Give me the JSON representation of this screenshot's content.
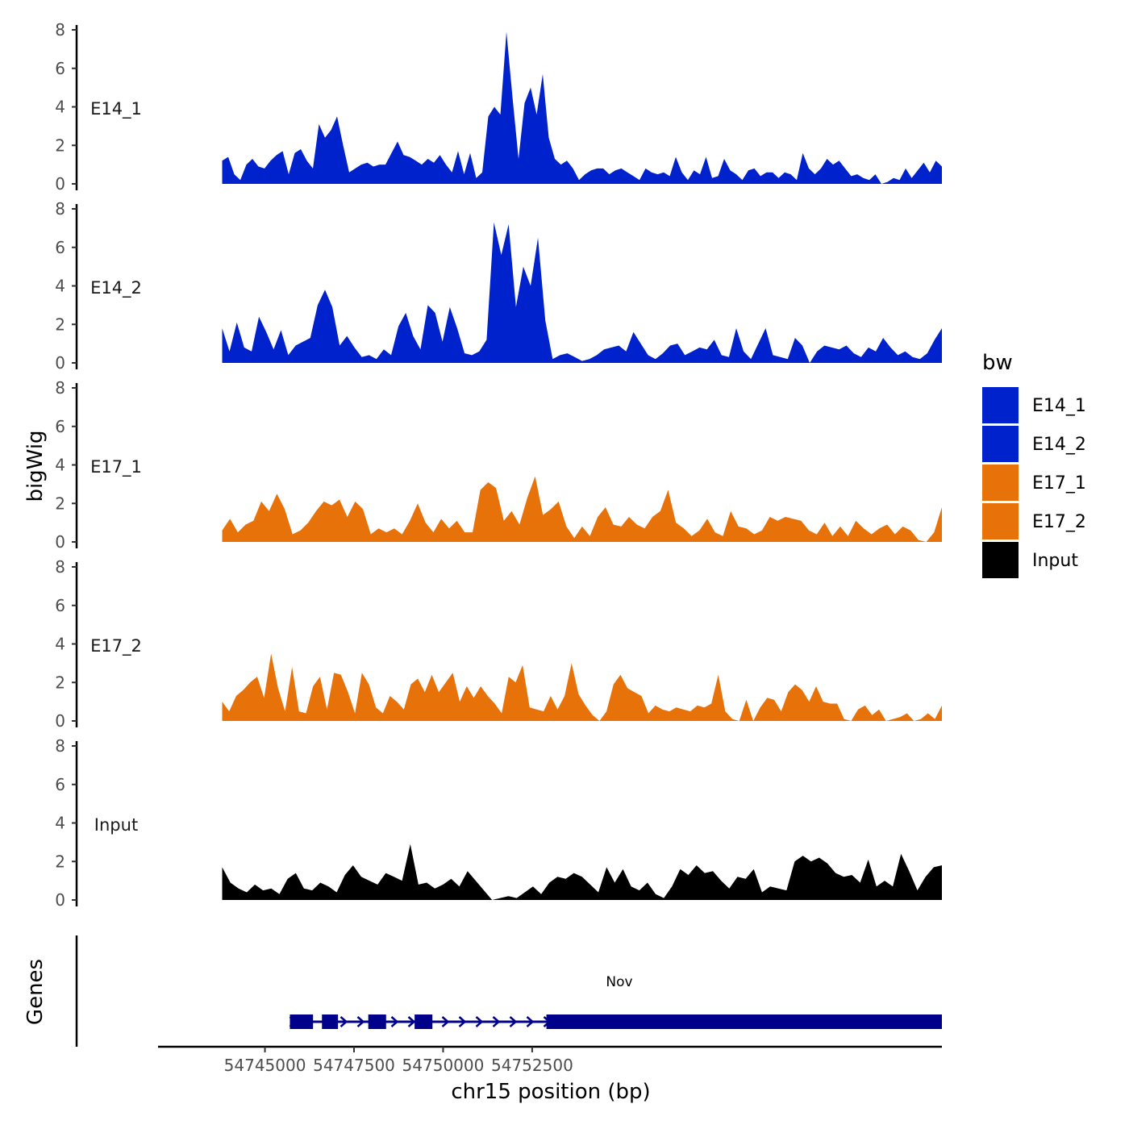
{
  "chart_data": {
    "type": "area",
    "ylabel": "bigWig",
    "genes_label": "Genes",
    "xlabel": "chr15 position (bp)",
    "x_range": [
      54742000,
      54764000
    ],
    "ylim": [
      0,
      8
    ],
    "y_ticks": [
      0,
      2,
      4,
      6,
      8
    ],
    "x_ticks": [
      54745000,
      54747500,
      54750000,
      54752500
    ],
    "x_tick_labels": [
      "54745000",
      "54747500",
      "54750000",
      "54752500"
    ],
    "legend": {
      "title": "bw",
      "entries": [
        {
          "name": "E14_1",
          "color": "#0022cc"
        },
        {
          "name": "E14_2",
          "color": "#0022cc"
        },
        {
          "name": "E17_1",
          "color": "#e8720a"
        },
        {
          "name": "E17_2",
          "color": "#e8720a"
        },
        {
          "name": "Input",
          "color": "#000000"
        }
      ]
    },
    "x_start": 54743800,
    "x_end": 54764000,
    "series": [
      {
        "name": "E14_1",
        "color": "#0022cc",
        "values": [
          1.2,
          1.4,
          0.5,
          0.2,
          1.0,
          1.3,
          0.9,
          0.8,
          1.2,
          1.5,
          1.7,
          0.5,
          1.6,
          1.8,
          1.2,
          0.8,
          3.1,
          2.4,
          2.8,
          3.5,
          2.0,
          0.6,
          0.8,
          1.0,
          1.1,
          0.9,
          1.0,
          1.0,
          1.6,
          2.2,
          1.5,
          1.4,
          1.2,
          1.0,
          1.3,
          1.1,
          1.5,
          1.0,
          0.6,
          1.7,
          0.5,
          1.6,
          0.3,
          0.6,
          3.5,
          4.0,
          3.6,
          7.9,
          4.5,
          1.3,
          4.2,
          5.0,
          3.6,
          5.7,
          2.4,
          1.3,
          1.0,
          1.2,
          0.8,
          0.2,
          0.5,
          0.7,
          0.8,
          0.8,
          0.5,
          0.7,
          0.8,
          0.6,
          0.4,
          0.2,
          0.8,
          0.6,
          0.5,
          0.6,
          0.4,
          1.4,
          0.6,
          0.2,
          0.7,
          0.5,
          1.4,
          0.3,
          0.4,
          1.3,
          0.7,
          0.5,
          0.2,
          0.7,
          0.8,
          0.4,
          0.6,
          0.6,
          0.3,
          0.6,
          0.5,
          0.2,
          1.6,
          0.8,
          0.5,
          0.8,
          1.3,
          1.0,
          1.2,
          0.8,
          0.4,
          0.5,
          0.3,
          0.2,
          0.5,
          0.0,
          0.1,
          0.3,
          0.2,
          0.8,
          0.3,
          0.7,
          1.1,
          0.6,
          1.2,
          0.9
        ]
      },
      {
        "name": "E14_2",
        "color": "#0022cc",
        "values": [
          1.8,
          0.6,
          2.1,
          0.8,
          0.6,
          2.4,
          1.6,
          0.7,
          1.7,
          0.4,
          0.9,
          1.1,
          1.3,
          3.0,
          3.8,
          2.9,
          0.9,
          1.4,
          0.8,
          0.3,
          0.4,
          0.2,
          0.7,
          0.4,
          1.9,
          2.6,
          1.4,
          0.7,
          3.0,
          2.6,
          1.1,
          2.9,
          1.8,
          0.5,
          0.4,
          0.6,
          1.2,
          7.3,
          5.6,
          7.2,
          2.9,
          5.0,
          4.0,
          6.5,
          2.2,
          0.2,
          0.4,
          0.5,
          0.3,
          0.1,
          0.2,
          0.4,
          0.7,
          0.8,
          0.9,
          0.6,
          1.6,
          1.0,
          0.4,
          0.2,
          0.5,
          0.9,
          1.0,
          0.4,
          0.6,
          0.8,
          0.7,
          1.2,
          0.4,
          0.3,
          1.8,
          0.6,
          0.2,
          1.0,
          1.8,
          0.4,
          0.3,
          0.2,
          1.3,
          0.9,
          0.0,
          0.6,
          0.9,
          0.8,
          0.7,
          0.9,
          0.5,
          0.3,
          0.8,
          0.6,
          1.3,
          0.8,
          0.4,
          0.6,
          0.3,
          0.2,
          0.5,
          1.2,
          1.8
        ]
      },
      {
        "name": "E17_1",
        "color": "#e8720a",
        "values": [
          0.6,
          1.2,
          0.5,
          0.9,
          1.1,
          2.1,
          1.6,
          2.5,
          1.7,
          0.4,
          0.6,
          1.0,
          1.6,
          2.1,
          1.9,
          2.2,
          1.3,
          2.1,
          1.7,
          0.4,
          0.7,
          0.5,
          0.7,
          0.4,
          1.1,
          2.0,
          1.0,
          0.5,
          1.2,
          0.7,
          1.1,
          0.5,
          0.5,
          2.7,
          3.1,
          2.8,
          1.1,
          1.6,
          0.9,
          2.3,
          3.4,
          1.4,
          1.7,
          2.1,
          0.8,
          0.2,
          0.8,
          0.3,
          1.3,
          1.8,
          0.9,
          0.8,
          1.3,
          0.9,
          0.7,
          1.3,
          1.6,
          2.7,
          1.0,
          0.7,
          0.3,
          0.6,
          1.2,
          0.5,
          0.3,
          1.6,
          0.8,
          0.7,
          0.4,
          0.6,
          1.3,
          1.1,
          1.3,
          1.2,
          1.1,
          0.6,
          0.4,
          1.0,
          0.3,
          0.8,
          0.3,
          1.1,
          0.7,
          0.4,
          0.7,
          0.9,
          0.4,
          0.8,
          0.6,
          0.1,
          0.0,
          0.5,
          1.8
        ]
      },
      {
        "name": "E17_2",
        "color": "#e8720a",
        "values": [
          1.0,
          0.5,
          1.3,
          1.6,
          2.0,
          2.3,
          1.2,
          3.5,
          1.7,
          0.5,
          2.8,
          0.5,
          0.4,
          1.8,
          2.3,
          0.6,
          2.5,
          2.4,
          1.5,
          0.4,
          2.5,
          1.9,
          0.7,
          0.4,
          1.3,
          1.0,
          0.6,
          1.9,
          2.2,
          1.5,
          2.4,
          1.5,
          2.0,
          2.5,
          1.0,
          1.8,
          1.2,
          1.8,
          1.3,
          0.9,
          0.4,
          2.3,
          2.0,
          2.9,
          0.7,
          0.6,
          0.5,
          1.3,
          0.6,
          1.3,
          3.0,
          1.4,
          0.8,
          0.3,
          0.0,
          0.5,
          1.9,
          2.4,
          1.7,
          1.5,
          1.3,
          0.4,
          0.8,
          0.6,
          0.5,
          0.7,
          0.6,
          0.5,
          0.8,
          0.7,
          0.9,
          2.4,
          0.5,
          0.1,
          0.0,
          1.1,
          0.0,
          0.7,
          1.2,
          1.1,
          0.5,
          1.5,
          1.9,
          1.6,
          1.0,
          1.8,
          1.0,
          0.9,
          0.9,
          0.1,
          0.0,
          0.6,
          0.8,
          0.3,
          0.6,
          0.0,
          0.1,
          0.2,
          0.4,
          0.0,
          0.1,
          0.4,
          0.1,
          0.8
        ]
      },
      {
        "name": "Input",
        "color": "#000000",
        "values": [
          1.7,
          0.9,
          0.6,
          0.4,
          0.8,
          0.5,
          0.6,
          0.3,
          1.1,
          1.4,
          0.6,
          0.5,
          0.9,
          0.7,
          0.4,
          1.3,
          1.8,
          1.2,
          1.0,
          0.8,
          1.4,
          1.2,
          1.0,
          2.9,
          0.8,
          0.9,
          0.6,
          0.8,
          1.1,
          0.7,
          1.5,
          1.0,
          0.5,
          0.0,
          0.1,
          0.2,
          0.1,
          0.4,
          0.7,
          0.3,
          0.9,
          1.2,
          1.1,
          1.4,
          1.2,
          0.8,
          0.4,
          1.7,
          0.9,
          1.6,
          0.7,
          0.5,
          0.9,
          0.3,
          0.1,
          0.7,
          1.6,
          1.3,
          1.8,
          1.4,
          1.5,
          1.0,
          0.6,
          1.2,
          1.1,
          1.6,
          0.4,
          0.7,
          0.6,
          0.5,
          2.0,
          2.3,
          2.0,
          2.2,
          1.9,
          1.4,
          1.2,
          1.3,
          0.9,
          2.1,
          0.7,
          1.0,
          0.7,
          2.4,
          1.5,
          0.5,
          1.2,
          1.7,
          1.8
        ]
      }
    ],
    "gene": {
      "name": "Nov",
      "start": 54745700,
      "end": 54764000,
      "color": "#00008b",
      "exons": [
        [
          54745700,
          54746350
        ],
        [
          54746600,
          54747050
        ],
        [
          54749200,
          54749700
        ],
        [
          54752900,
          54764000
        ],
        [
          54747900,
          54748400
        ]
      ]
    }
  }
}
